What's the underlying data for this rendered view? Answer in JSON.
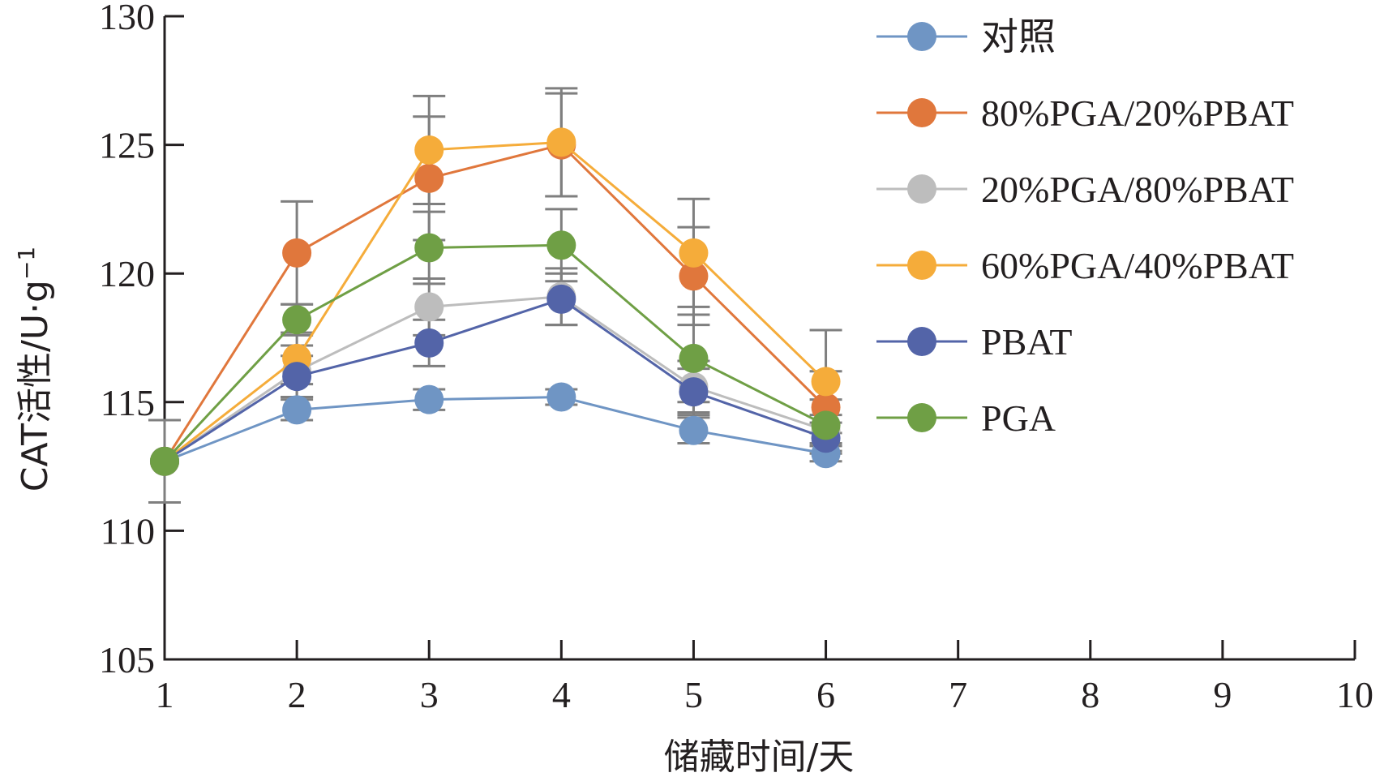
{
  "chart_data": {
    "type": "line",
    "xlabel": "储藏时间/天",
    "ylabel": "CAT活性/U·g",
    "ylabel_superscript": "−1",
    "xlim": [
      1,
      10
    ],
    "ylim": [
      105,
      130
    ],
    "xticks": [
      "1",
      "2",
      "3",
      "4",
      "5",
      "6",
      "7",
      "8",
      "9",
      "10"
    ],
    "yticks": [
      "105",
      "110",
      "115",
      "120",
      "125",
      "130"
    ],
    "x": [
      1,
      2,
      3,
      4,
      5,
      6
    ],
    "legend_position": "top-right",
    "grid": false,
    "series": [
      {
        "name": "对照",
        "color": "#6f95c4",
        "values": [
          112.7,
          114.7,
          115.1,
          115.2,
          113.9,
          113.0
        ],
        "error": [
          1.6,
          0.4,
          0.4,
          0.3,
          0.5,
          0.3
        ]
      },
      {
        "name": "80%PGA/20%PBAT",
        "color": "#e0773c",
        "values": [
          112.7,
          120.8,
          123.7,
          125.0,
          119.9,
          114.8
        ],
        "error": [
          1.6,
          2.0,
          2.4,
          2.0,
          1.9,
          1.4
        ]
      },
      {
        "name": "20%PGA/80%PBAT",
        "color": "#bdbdbd",
        "values": [
          112.7,
          116.2,
          118.7,
          119.1,
          115.6,
          113.9
        ],
        "error": [
          1.6,
          1.0,
          1.1,
          1.1,
          1.0,
          0.6
        ]
      },
      {
        "name": "60%PGA/40%PBAT",
        "color": "#f5ac3a",
        "values": [
          112.7,
          116.7,
          124.8,
          125.1,
          120.8,
          115.8
        ],
        "error": [
          1.6,
          1.0,
          2.1,
          2.1,
          2.1,
          2.0
        ]
      },
      {
        "name": "PBAT",
        "color": "#5364a8",
        "values": [
          112.7,
          116.0,
          117.3,
          119.0,
          115.4,
          113.6
        ],
        "error": [
          1.6,
          0.8,
          0.9,
          1.0,
          0.9,
          0.6
        ]
      },
      {
        "name": "PGA",
        "color": "#6f9f45",
        "values": [
          112.7,
          118.2,
          121.0,
          121.1,
          116.7,
          114.1
        ],
        "error": [
          1.6,
          0.6,
          1.4,
          1.4,
          1.7,
          1.0
        ]
      }
    ]
  }
}
